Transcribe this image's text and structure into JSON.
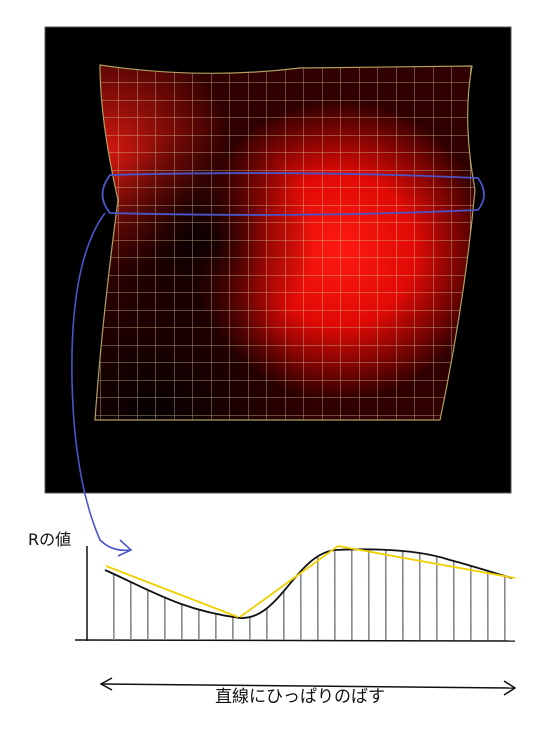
{
  "labels": {
    "y_axis": "Rの値",
    "caption": "直線にひっぱりのばす"
  }
}
